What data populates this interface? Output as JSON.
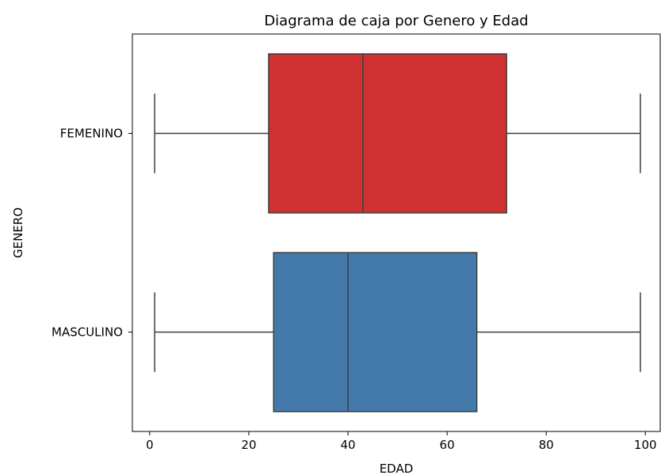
{
  "chart_data": {
    "type": "boxplot",
    "orientation": "horizontal",
    "title": "Diagrama de caja por Genero y Edad",
    "xlabel": "EDAD",
    "ylabel": "GENERO",
    "xlim": [
      -3.5,
      103
    ],
    "xticks": [
      0,
      20,
      40,
      60,
      80,
      100
    ],
    "categories": [
      "FEMENINO",
      "MASCULINO"
    ],
    "series": [
      {
        "category": "FEMENINO",
        "whisker_low": 1,
        "q1": 24,
        "median": 43,
        "q3": 72,
        "whisker_high": 99,
        "color": "#d03234"
      },
      {
        "category": "MASCULINO",
        "whisker_low": 1,
        "q1": 25,
        "median": 40,
        "q3": 66,
        "whisker_high": 99,
        "color": "#4479ac"
      }
    ],
    "grid": false,
    "legend": "none"
  }
}
